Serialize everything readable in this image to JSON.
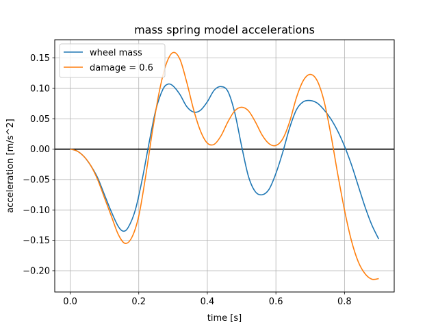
{
  "chart_data": {
    "type": "line",
    "title": "mass spring model accelerations",
    "xlabel": "time [s]",
    "ylabel": "acceleration [m/s^2]",
    "xlim": [
      -0.045,
      0.945
    ],
    "ylim": [
      -0.235,
      0.18
    ],
    "xticks": [
      0.0,
      0.2,
      0.4,
      0.6,
      0.8
    ],
    "xtick_labels": [
      "0.0",
      "0.2",
      "0.4",
      "0.6",
      "0.8"
    ],
    "yticks": [
      -0.2,
      -0.15,
      -0.1,
      -0.05,
      0.0,
      0.05,
      0.1,
      0.15
    ],
    "ytick_labels": [
      "−0.20",
      "−0.15",
      "−0.10",
      "−0.05",
      "0.00",
      "0.05",
      "0.10",
      "0.15"
    ],
    "grid": true,
    "legend": "upper-left",
    "reference_line": {
      "y": 0.0,
      "color": "#000000"
    },
    "series": [
      {
        "name": "wheel mass",
        "color": "#1f77b4",
        "points": [
          [
            0.0,
            0.0
          ],
          [
            0.02,
            -0.003
          ],
          [
            0.04,
            -0.012
          ],
          [
            0.06,
            -0.027
          ],
          [
            0.08,
            -0.047
          ],
          [
            0.1,
            -0.075
          ],
          [
            0.12,
            -0.103
          ],
          [
            0.14,
            -0.127
          ],
          [
            0.155,
            -0.135
          ],
          [
            0.17,
            -0.128
          ],
          [
            0.19,
            -0.1
          ],
          [
            0.21,
            -0.05
          ],
          [
            0.23,
            0.01
          ],
          [
            0.25,
            0.065
          ],
          [
            0.27,
            0.098
          ],
          [
            0.285,
            0.107
          ],
          [
            0.3,
            0.104
          ],
          [
            0.32,
            0.09
          ],
          [
            0.34,
            0.07
          ],
          [
            0.36,
            0.061
          ],
          [
            0.38,
            0.064
          ],
          [
            0.4,
            0.078
          ],
          [
            0.42,
            0.097
          ],
          [
            0.44,
            0.103
          ],
          [
            0.46,
            0.095
          ],
          [
            0.48,
            0.06
          ],
          [
            0.5,
            0.005
          ],
          [
            0.52,
            -0.045
          ],
          [
            0.54,
            -0.07
          ],
          [
            0.56,
            -0.075
          ],
          [
            0.58,
            -0.066
          ],
          [
            0.6,
            -0.04
          ],
          [
            0.62,
            -0.005
          ],
          [
            0.64,
            0.035
          ],
          [
            0.66,
            0.065
          ],
          [
            0.68,
            0.078
          ],
          [
            0.7,
            0.08
          ],
          [
            0.72,
            0.076
          ],
          [
            0.74,
            0.065
          ],
          [
            0.76,
            0.05
          ],
          [
            0.78,
            0.03
          ],
          [
            0.8,
            0.005
          ],
          [
            0.82,
            -0.025
          ],
          [
            0.84,
            -0.06
          ],
          [
            0.86,
            -0.095
          ],
          [
            0.88,
            -0.125
          ],
          [
            0.9,
            -0.148
          ]
        ]
      },
      {
        "name": "damage = 0.6",
        "color": "#ff7f0e",
        "points": [
          [
            0.0,
            0.0
          ],
          [
            0.02,
            -0.003
          ],
          [
            0.04,
            -0.012
          ],
          [
            0.06,
            -0.027
          ],
          [
            0.08,
            -0.05
          ],
          [
            0.1,
            -0.08
          ],
          [
            0.12,
            -0.11
          ],
          [
            0.14,
            -0.14
          ],
          [
            0.16,
            -0.155
          ],
          [
            0.18,
            -0.145
          ],
          [
            0.2,
            -0.11
          ],
          [
            0.22,
            -0.045
          ],
          [
            0.24,
            0.03
          ],
          [
            0.26,
            0.095
          ],
          [
            0.28,
            0.14
          ],
          [
            0.3,
            0.159
          ],
          [
            0.32,
            0.148
          ],
          [
            0.34,
            0.11
          ],
          [
            0.36,
            0.065
          ],
          [
            0.38,
            0.03
          ],
          [
            0.4,
            0.01
          ],
          [
            0.42,
            0.008
          ],
          [
            0.44,
            0.022
          ],
          [
            0.46,
            0.045
          ],
          [
            0.48,
            0.063
          ],
          [
            0.5,
            0.069
          ],
          [
            0.52,
            0.063
          ],
          [
            0.54,
            0.045
          ],
          [
            0.56,
            0.023
          ],
          [
            0.58,
            0.009
          ],
          [
            0.6,
            0.006
          ],
          [
            0.62,
            0.017
          ],
          [
            0.64,
            0.045
          ],
          [
            0.66,
            0.085
          ],
          [
            0.68,
            0.113
          ],
          [
            0.7,
            0.123
          ],
          [
            0.72,
            0.113
          ],
          [
            0.74,
            0.08
          ],
          [
            0.76,
            0.025
          ],
          [
            0.78,
            -0.04
          ],
          [
            0.8,
            -0.1
          ],
          [
            0.82,
            -0.15
          ],
          [
            0.84,
            -0.185
          ],
          [
            0.86,
            -0.205
          ],
          [
            0.88,
            -0.214
          ],
          [
            0.9,
            -0.213
          ]
        ]
      }
    ]
  }
}
